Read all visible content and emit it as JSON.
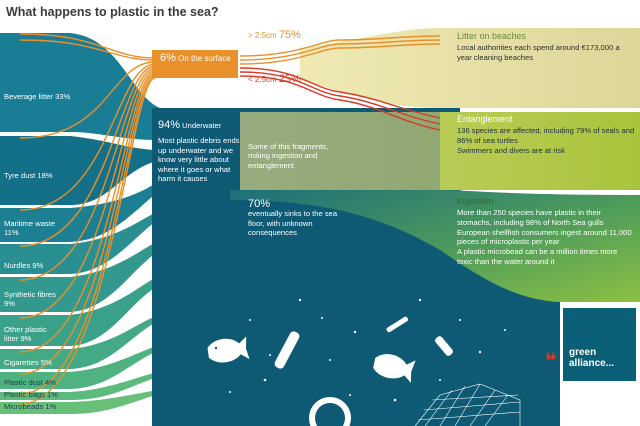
{
  "title": "What happens to plastic in the sea?",
  "sources": [
    {
      "label": "Beverage litter 33%"
    },
    {
      "label": "Tyre dust 18%"
    },
    {
      "label": "Maritime waste 11%"
    },
    {
      "label": "Nurdles 9%"
    },
    {
      "label": "Synthetic fibres 9%"
    },
    {
      "label": "Other plastic litter 9%"
    },
    {
      "label": "Cigarettes 5%"
    },
    {
      "label": "Plastic dust 4%"
    },
    {
      "label": "Plastic bags 1%"
    },
    {
      "label": "Microbeads 1%"
    }
  ],
  "surface": {
    "pct": "6%",
    "label": "On the surface"
  },
  "split": {
    "big": {
      "label": "> 2.5cm",
      "pct": "75%"
    },
    "small": {
      "label": "< 2.5cm",
      "pct": "25%"
    }
  },
  "underwater": {
    "pct": "94%",
    "label": "Underwater",
    "text": "Most plastic debris ends up underwater and we know very little about where it goes or what harm it causes"
  },
  "fragments": {
    "text": "Some of this fragments, risking ingestion and entanglement"
  },
  "sinks": {
    "pct": "70%",
    "text": "eventually sinks to the sea floor, with unknown consequences"
  },
  "outcomes": {
    "beaches": {
      "title": "Litter on beaches",
      "lines": [
        "Local authorities each spend around €173,000 a year cleaning beaches"
      ]
    },
    "entanglement": {
      "title": "Entanglement",
      "lines": [
        "136 species are affected, including 79% of seals and 86% of sea turtles",
        "Swimmers and divers are at risk"
      ]
    },
    "ingestion": {
      "title": "Ingestion",
      "lines": [
        "More than 250 species have plastic in their stomachs, including 98% of North Sea gulls",
        "European shellfish consumers ingest around 11,000 pieces of microplastic per year",
        "A plastic microbead can be a million times more toxic than the water around it"
      ]
    }
  },
  "logo": {
    "line1": "green",
    "line2": "alliance..."
  },
  "colors": {
    "ocean": "#0f5c78",
    "ocean_deep": "#0c4e66",
    "surface_flow": "#e8912a",
    "small_flow": "#d93a26",
    "beach": "#d8d38e",
    "entangle": "#a7c23a",
    "ingest": "#74b33e",
    "label_text": "#5a8a3a"
  }
}
